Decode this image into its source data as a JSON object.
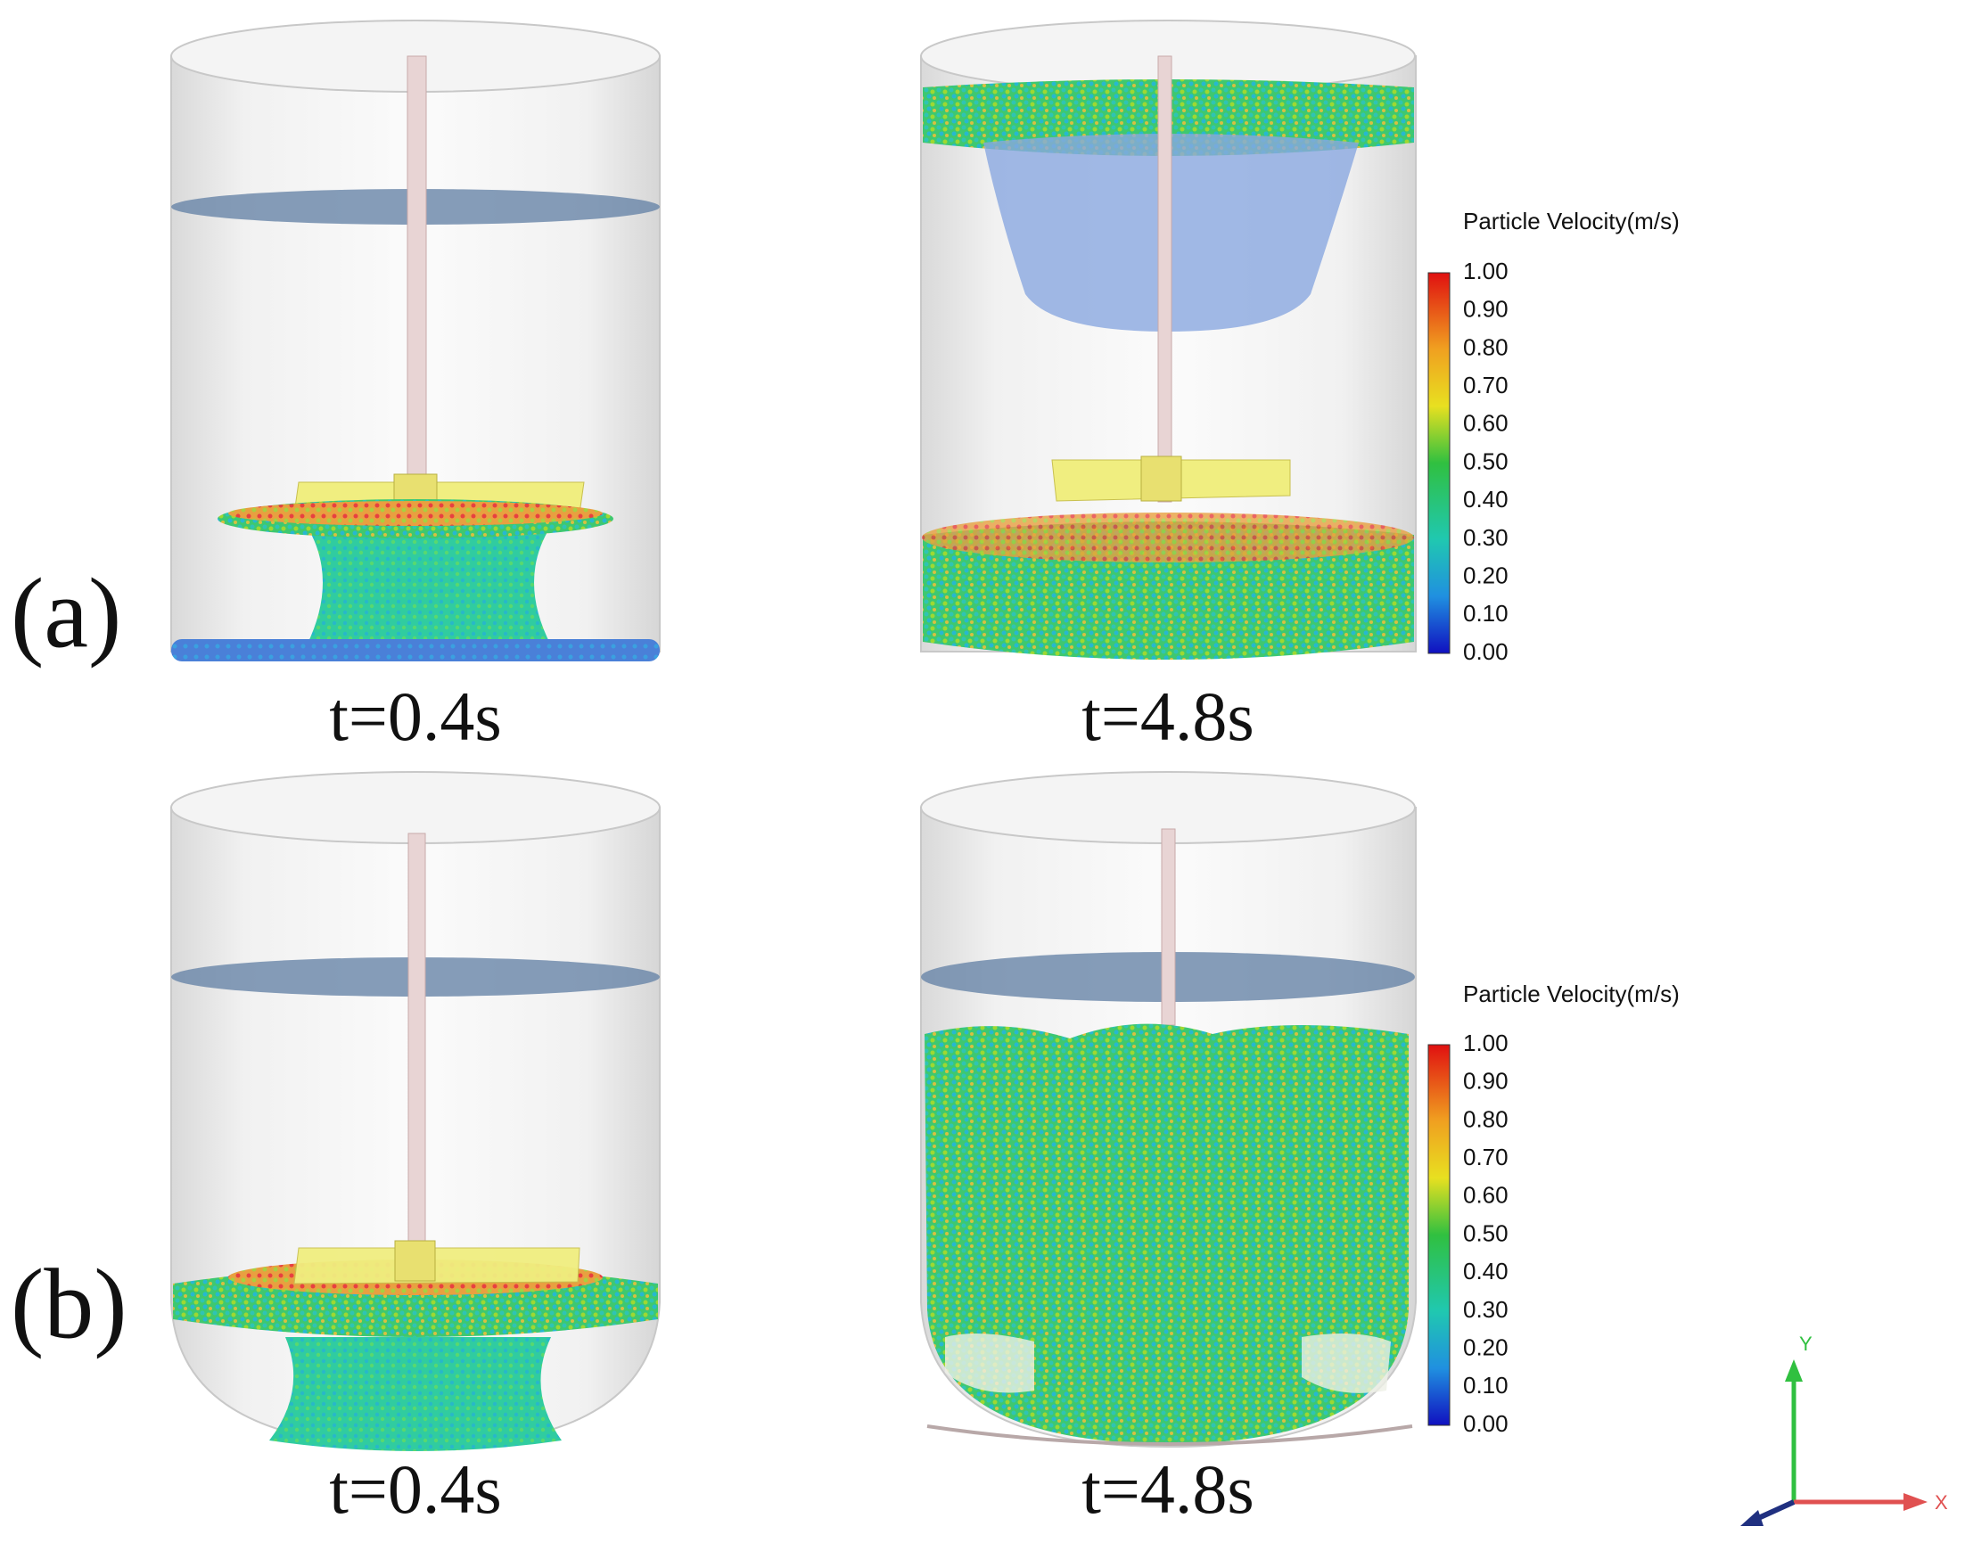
{
  "rows": [
    {
      "label": "(a)",
      "times": [
        "t=0.4s",
        "t=4.8s"
      ],
      "colorbar": {
        "title": "Particle Velocity(m/s)",
        "ticks": [
          "1.00",
          "0.90",
          "0.80",
          "0.70",
          "0.60",
          "0.50",
          "0.40",
          "0.30",
          "0.20",
          "0.10",
          "0.00"
        ]
      }
    },
    {
      "label": "(b)",
      "times": [
        "t=0.4s",
        "t=4.8s"
      ],
      "colorbar": {
        "title": "Particle Velocity(m/s)",
        "ticks": [
          "1.00",
          "0.90",
          "0.80",
          "0.70",
          "0.60",
          "0.50",
          "0.40",
          "0.30",
          "0.20",
          "0.10",
          "0.00"
        ]
      }
    }
  ],
  "axes": {
    "y": "Y",
    "x": "X"
  }
}
